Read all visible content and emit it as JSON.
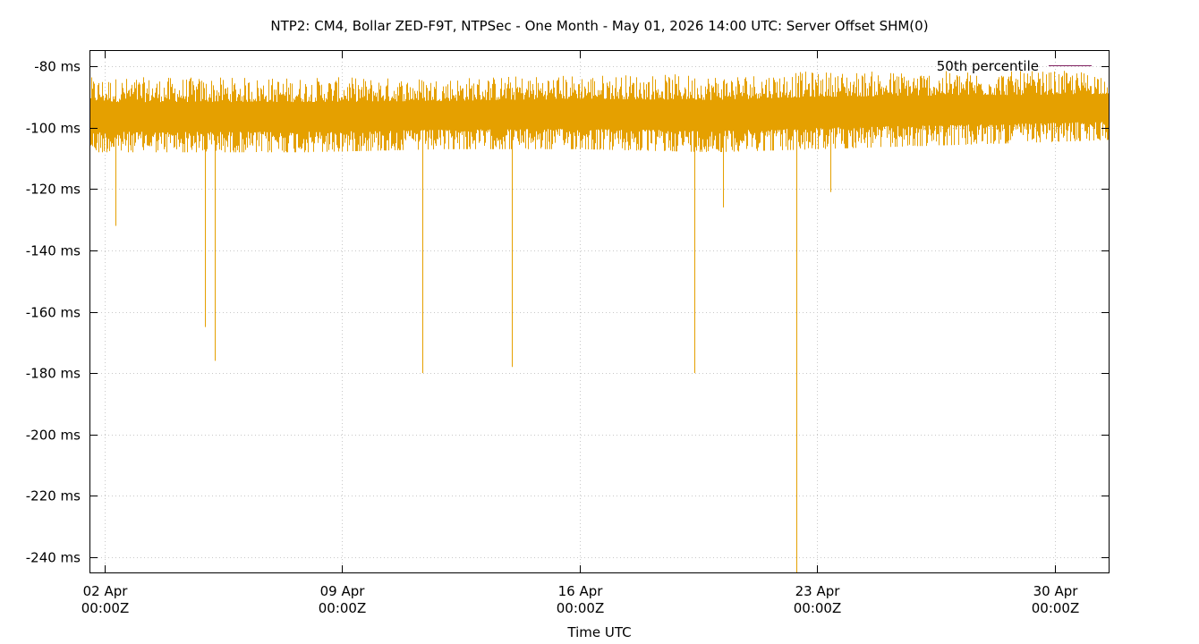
{
  "chart_data": {
    "type": "line",
    "title": "NTP2: CM4, Bollar ZED-F9T, NTPSec - One Month - May 01, 2026 14:00 UTC: Server Offset SHM(0)",
    "xlabel": "Time UTC",
    "ylabel": "",
    "x_ticks": [
      {
        "date": "2026-04-02T00:00Z",
        "line1": "02 Apr",
        "line2": "00:00Z"
      },
      {
        "date": "2026-04-09T00:00Z",
        "line1": "09 Apr",
        "line2": "00:00Z"
      },
      {
        "date": "2026-04-16T00:00Z",
        "line1": "16 Apr",
        "line2": "00:00Z"
      },
      {
        "date": "2026-04-23T00:00Z",
        "line1": "23 Apr",
        "line2": "00:00Z"
      },
      {
        "date": "2026-04-30T00:00Z",
        "line1": "30 Apr",
        "line2": "00:00Z"
      }
    ],
    "xlim": [
      "2026-04-01T14:00Z",
      "2026-05-01T14:00Z"
    ],
    "ylim": [
      -245,
      -75
    ],
    "y_unit": "ms",
    "y_ticks": [
      {
        "value": -80,
        "label": "-80 ms"
      },
      {
        "value": -100,
        "label": "-100 ms"
      },
      {
        "value": -120,
        "label": "-120 ms"
      },
      {
        "value": -140,
        "label": "-140 ms"
      },
      {
        "value": -160,
        "label": "-160 ms"
      },
      {
        "value": -180,
        "label": "-180 ms"
      },
      {
        "value": -200,
        "label": "-200 ms"
      },
      {
        "value": -220,
        "label": "-220 ms"
      },
      {
        "value": -240,
        "label": "-240 ms"
      }
    ],
    "grid": true,
    "legend_position": "top-right",
    "legend": [
      {
        "label": "50th percentile",
        "color": "#7f1f5f"
      }
    ],
    "series": [
      {
        "color": "#e5a000",
        "band_points": [
          {
            "x": "2026-04-01T14:00Z",
            "min": -108,
            "max": -81
          },
          {
            "x": "2026-04-04T00:00Z",
            "min": -108,
            "max": -81
          },
          {
            "x": "2026-04-08T00:00Z",
            "min": -108,
            "max": -81
          },
          {
            "x": "2026-04-12T00:00Z",
            "min": -107,
            "max": -81
          },
          {
            "x": "2026-04-16T00:00Z",
            "min": -107,
            "max": -80
          },
          {
            "x": "2026-04-20T00:00Z",
            "min": -108,
            "max": -80
          },
          {
            "x": "2026-04-23T00:00Z",
            "min": -107,
            "max": -79
          },
          {
            "x": "2026-04-26T00:00Z",
            "min": -106,
            "max": -79
          },
          {
            "x": "2026-04-29T00:00Z",
            "min": -105,
            "max": -79
          },
          {
            "x": "2026-05-01T14:00Z",
            "min": -104,
            "max": -79
          }
        ],
        "spikes": [
          {
            "x": "2026-04-02T08:00Z",
            "y": -132
          },
          {
            "x": "2026-04-04T23:00Z",
            "y": -165
          },
          {
            "x": "2026-04-05T06:00Z",
            "y": -176
          },
          {
            "x": "2026-04-11T09:00Z",
            "y": -180
          },
          {
            "x": "2026-04-14T00:00Z",
            "y": -178
          },
          {
            "x": "2026-04-19T09:00Z",
            "y": -180
          },
          {
            "x": "2026-04-22T09:00Z",
            "y": -245
          },
          {
            "x": "2026-04-20T05:00Z",
            "y": -126
          },
          {
            "x": "2026-04-23T09:00Z",
            "y": -121
          }
        ]
      }
    ]
  }
}
